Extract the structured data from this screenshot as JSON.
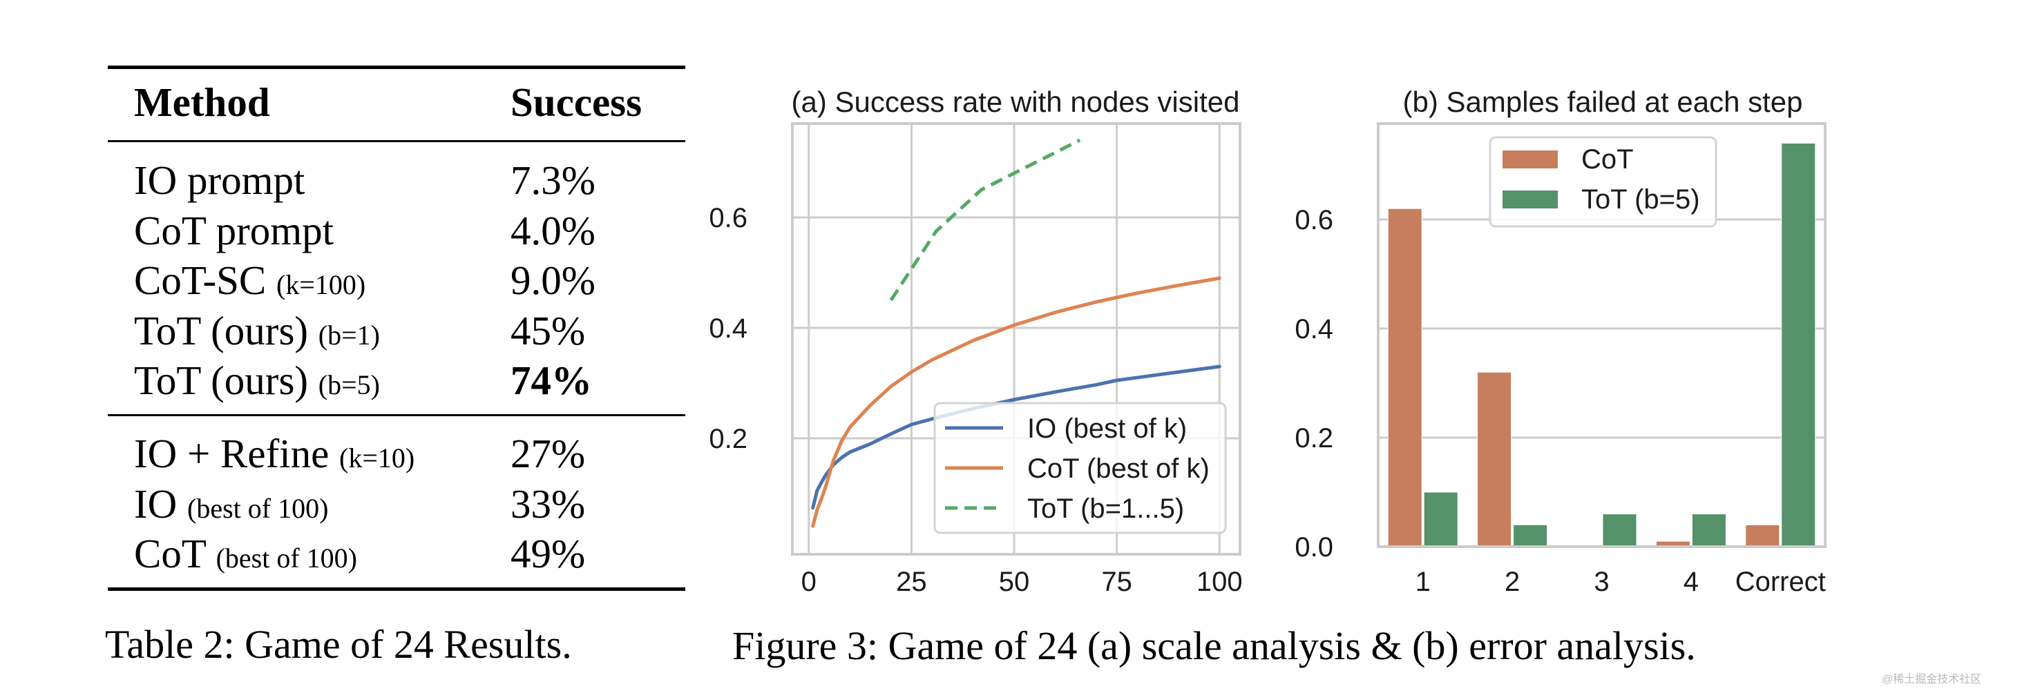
{
  "table": {
    "headers": {
      "method": "Method",
      "success": "Success"
    },
    "group1": [
      {
        "method": "IO prompt",
        "suffix": "",
        "success": "7.3%",
        "bold": false
      },
      {
        "method": "CoT prompt",
        "suffix": "",
        "success": "4.0%",
        "bold": false
      },
      {
        "method": "CoT-SC",
        "suffix": "(k=100)",
        "success": "9.0%",
        "bold": false
      },
      {
        "method": "ToT (ours)",
        "suffix": "(b=1)",
        "success": "45%",
        "bold": false
      },
      {
        "method": "ToT (ours)",
        "suffix": "(b=5)",
        "success": "74%",
        "bold": true
      }
    ],
    "group2": [
      {
        "method": "IO + Refine",
        "suffix": "(k=10)",
        "success": "27%",
        "bold": false
      },
      {
        "method": "IO",
        "suffix": "(best of 100)",
        "success": "33%",
        "bold": false
      },
      {
        "method": "CoT",
        "suffix": "(best of 100)",
        "success": "49%",
        "bold": false
      }
    ],
    "caption": "Table 2: Game of 24 Results."
  },
  "figure_caption": "Figure 3: Game of 24 (a) scale analysis & (b) error analysis.",
  "watermark": "@稀土掘金技术社区",
  "colors": {
    "io_line": "#4C72B0",
    "cot_line": "#DD8452",
    "tot_line": "#55A868",
    "cot_bar": "#C67E5E",
    "tot_bar": "#55926A",
    "grid": "#CCCCCC",
    "frame": "#CCCCCC"
  },
  "chart_data": [
    {
      "type": "line",
      "title": "(a) Success rate with nodes visited",
      "xlabel": "",
      "ylabel": "",
      "xlim": [
        -4,
        105
      ],
      "ylim": [
        -0.01,
        0.77
      ],
      "xticks": [
        0,
        25,
        50,
        75,
        100
      ],
      "xtick_labels": [
        "0",
        "25",
        "50",
        "75",
        "100"
      ],
      "yticks": [
        0.2,
        0.4,
        0.6
      ],
      "ytick_labels": [
        "0.2",
        "0.4",
        "0.6"
      ],
      "grid": true,
      "legend_position": "lower-right",
      "series": [
        {
          "name": "IO (best of k)",
          "style": "solid",
          "x": [
            1,
            2,
            3,
            4,
            6,
            8,
            10,
            15,
            20,
            25,
            30,
            40,
            50,
            60,
            70,
            75,
            80,
            90,
            100
          ],
          "y": [
            0.074,
            0.105,
            0.119,
            0.132,
            0.152,
            0.165,
            0.175,
            0.19,
            0.208,
            0.225,
            0.235,
            0.254,
            0.27,
            0.284,
            0.297,
            0.305,
            0.31,
            0.32,
            0.33
          ]
        },
        {
          "name": "CoT (best of k)",
          "style": "solid",
          "x": [
            1,
            2,
            3,
            4,
            6,
            8,
            10,
            15,
            20,
            25,
            30,
            40,
            50,
            60,
            70,
            75,
            80,
            90,
            100
          ],
          "y": [
            0.041,
            0.07,
            0.089,
            0.11,
            0.16,
            0.195,
            0.22,
            0.26,
            0.294,
            0.32,
            0.342,
            0.377,
            0.405,
            0.428,
            0.447,
            0.455,
            0.463,
            0.477,
            0.49
          ]
        },
        {
          "name": "ToT (b=1...5)",
          "style": "dashed",
          "x": [
            20,
            31,
            42,
            66
          ],
          "y": [
            0.45,
            0.575,
            0.65,
            0.74
          ]
        }
      ]
    },
    {
      "type": "bar",
      "title": "(b) Samples failed at each step",
      "xlabel": "",
      "ylabel": "",
      "categories": [
        "1",
        "2",
        "3",
        "4",
        "Correct"
      ],
      "ylim": [
        0.0,
        0.776
      ],
      "yticks": [
        0.0,
        0.2,
        0.4,
        0.6
      ],
      "ytick_labels": [
        "0.0",
        "0.2",
        "0.4",
        "0.6"
      ],
      "grid": true,
      "legend_position": "top-center",
      "series": [
        {
          "name": "CoT",
          "values": [
            0.62,
            0.32,
            0.002,
            0.01,
            0.04
          ]
        },
        {
          "name": "ToT (b=5)",
          "values": [
            0.1,
            0.04,
            0.06,
            0.06,
            0.74
          ]
        }
      ]
    }
  ]
}
